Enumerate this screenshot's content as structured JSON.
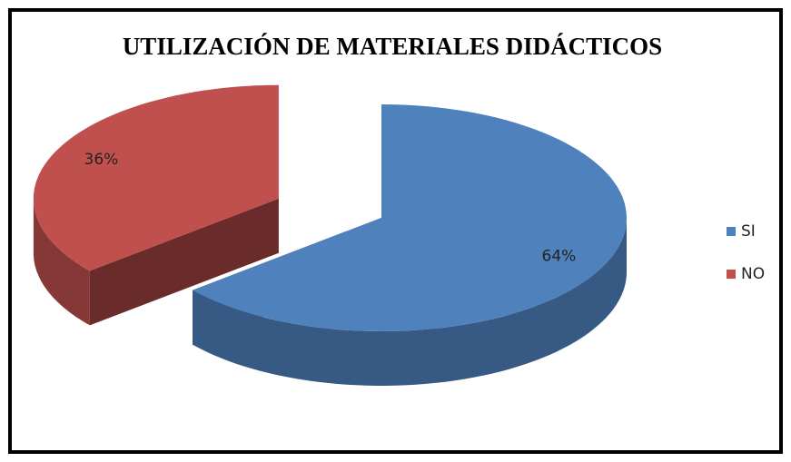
{
  "chart_data": {
    "type": "pie",
    "title": "UTILIZACIÓN DE MATERIALES DIDÁCTICOS",
    "categories": [
      "SI",
      "NO"
    ],
    "values": [
      64,
      36
    ],
    "value_labels": [
      "64%",
      "36%"
    ],
    "colors": [
      "#4f81bd",
      "#c0504d"
    ],
    "legend": "right"
  }
}
